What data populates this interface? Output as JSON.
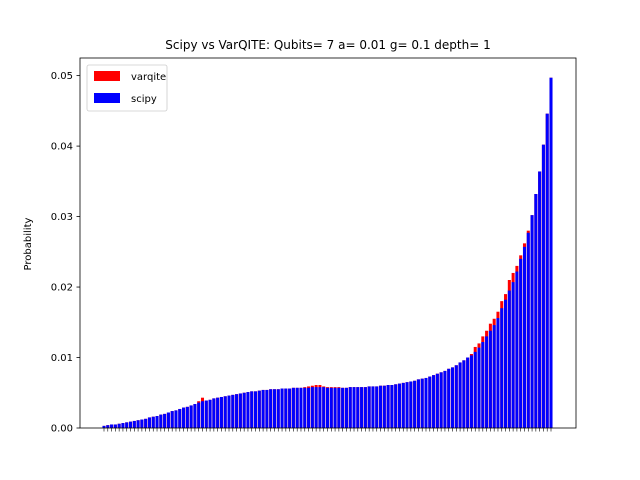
{
  "chart_data": {
    "type": "bar",
    "title": "Scipy vs VarQITE: Qubits= 7 a= 0.01 g= 0.1 depth= 1",
    "xlabel": "",
    "ylabel": "Probability",
    "ylim": [
      0,
      0.0525
    ],
    "yticks": [
      "0.00",
      "0.01",
      "0.02",
      "0.03",
      "0.04",
      "0.05"
    ],
    "ytick_values": [
      0,
      0.01,
      0.02,
      0.03,
      0.04,
      0.05
    ],
    "legend_position": "top-left",
    "grid": false,
    "colors": {
      "varqite": "#ff0000",
      "scipy": "#0000ff"
    },
    "series": [
      {
        "name": "varqite",
        "values": [
          0.0003,
          0.0004,
          0.0005,
          0.0005,
          0.0006,
          0.0007,
          0.0008,
          0.0009,
          0.001,
          0.0011,
          0.0012,
          0.0013,
          0.0015,
          0.0016,
          0.0017,
          0.0019,
          0.002,
          0.0022,
          0.0024,
          0.0025,
          0.0027,
          0.0029,
          0.003,
          0.0032,
          0.0034,
          0.0038,
          0.0043,
          0.0039,
          0.004,
          0.0042,
          0.0043,
          0.0044,
          0.0045,
          0.0046,
          0.0047,
          0.0048,
          0.0049,
          0.005,
          0.0051,
          0.0052,
          0.0052,
          0.0053,
          0.0054,
          0.0054,
          0.0055,
          0.0055,
          0.0055,
          0.0056,
          0.0056,
          0.0056,
          0.0057,
          0.0057,
          0.0057,
          0.0058,
          0.0059,
          0.006,
          0.0061,
          0.0061,
          0.0059,
          0.0058,
          0.0058,
          0.0058,
          0.0058,
          0.0057,
          0.0057,
          0.0058,
          0.0058,
          0.0058,
          0.0058,
          0.0058,
          0.0059,
          0.0059,
          0.0059,
          0.006,
          0.006,
          0.0061,
          0.0061,
          0.0062,
          0.0063,
          0.0064,
          0.0065,
          0.0066,
          0.0067,
          0.0069,
          0.007,
          0.0071,
          0.0073,
          0.0075,
          0.0077,
          0.0079,
          0.0081,
          0.0084,
          0.0086,
          0.0089,
          0.0093,
          0.0096,
          0.01,
          0.0105,
          0.0115,
          0.012,
          0.013,
          0.0138,
          0.0148,
          0.0155,
          0.0165,
          0.018,
          0.019,
          0.021,
          0.022,
          0.023,
          0.0245,
          0.0262,
          0.028,
          0.0302,
          0.0332,
          0.0364,
          0.0402,
          0.0446,
          0.0497
        ]
      },
      {
        "name": "scipy",
        "values": [
          0.0003,
          0.0004,
          0.0005,
          0.0005,
          0.0006,
          0.0007,
          0.0008,
          0.0009,
          0.001,
          0.0011,
          0.0012,
          0.0013,
          0.0015,
          0.0016,
          0.0017,
          0.0019,
          0.002,
          0.0022,
          0.0024,
          0.0025,
          0.0027,
          0.0029,
          0.003,
          0.0032,
          0.0034,
          0.0036,
          0.0038,
          0.0039,
          0.004,
          0.0042,
          0.0043,
          0.0044,
          0.0045,
          0.0046,
          0.0047,
          0.0048,
          0.0049,
          0.005,
          0.0051,
          0.0052,
          0.0052,
          0.0053,
          0.0054,
          0.0054,
          0.0055,
          0.0055,
          0.0055,
          0.0056,
          0.0056,
          0.0056,
          0.0057,
          0.0057,
          0.0057,
          0.0057,
          0.0057,
          0.0058,
          0.0058,
          0.0058,
          0.0058,
          0.0057,
          0.0057,
          0.0057,
          0.0057,
          0.0057,
          0.0057,
          0.0058,
          0.0058,
          0.0058,
          0.0058,
          0.0058,
          0.0059,
          0.0059,
          0.0059,
          0.006,
          0.006,
          0.0061,
          0.0061,
          0.0062,
          0.0063,
          0.0064,
          0.0065,
          0.0066,
          0.0067,
          0.0069,
          0.007,
          0.0071,
          0.0073,
          0.0075,
          0.0077,
          0.0079,
          0.0081,
          0.0084,
          0.0086,
          0.0089,
          0.0093,
          0.0096,
          0.01,
          0.0103,
          0.0108,
          0.0114,
          0.0122,
          0.013,
          0.0138,
          0.0146,
          0.0156,
          0.017,
          0.0182,
          0.0195,
          0.0207,
          0.0222,
          0.024,
          0.0257,
          0.0277,
          0.0302,
          0.0332,
          0.0364,
          0.0402,
          0.0446,
          0.0497
        ]
      }
    ]
  }
}
